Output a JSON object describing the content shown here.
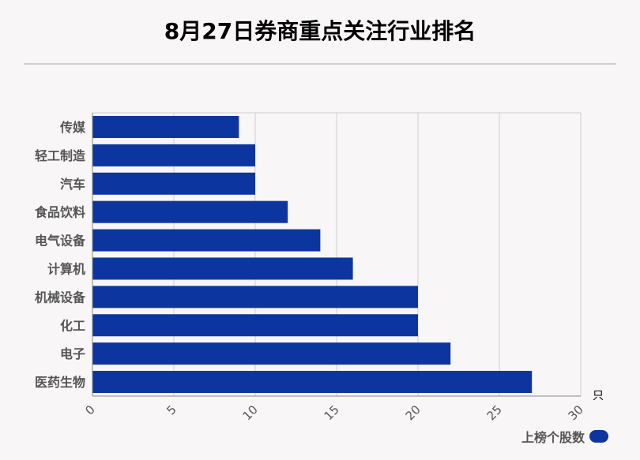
{
  "title": "8月27日券商重点关注行业排名",
  "colors": {
    "bar": "#0d35a0",
    "grid": "#cfcfcf",
    "axis": "#888888"
  },
  "chart_data": {
    "type": "bar",
    "orientation": "horizontal",
    "categories": [
      "传媒",
      "轻工制造",
      "汽车",
      "食品饮料",
      "电气设备",
      "计算机",
      "机械设备",
      "化工",
      "电子",
      "医药生物"
    ],
    "series": [
      {
        "name": "上榜个股数",
        "values": [
          9,
          10,
          10,
          12,
          14,
          16,
          20,
          20,
          22,
          27
        ]
      }
    ],
    "xlim": [
      0,
      30
    ],
    "xticks": [
      0,
      5,
      10,
      15,
      20,
      25,
      30
    ],
    "xunit": "只",
    "grid": true,
    "legend": "bottom-right"
  }
}
